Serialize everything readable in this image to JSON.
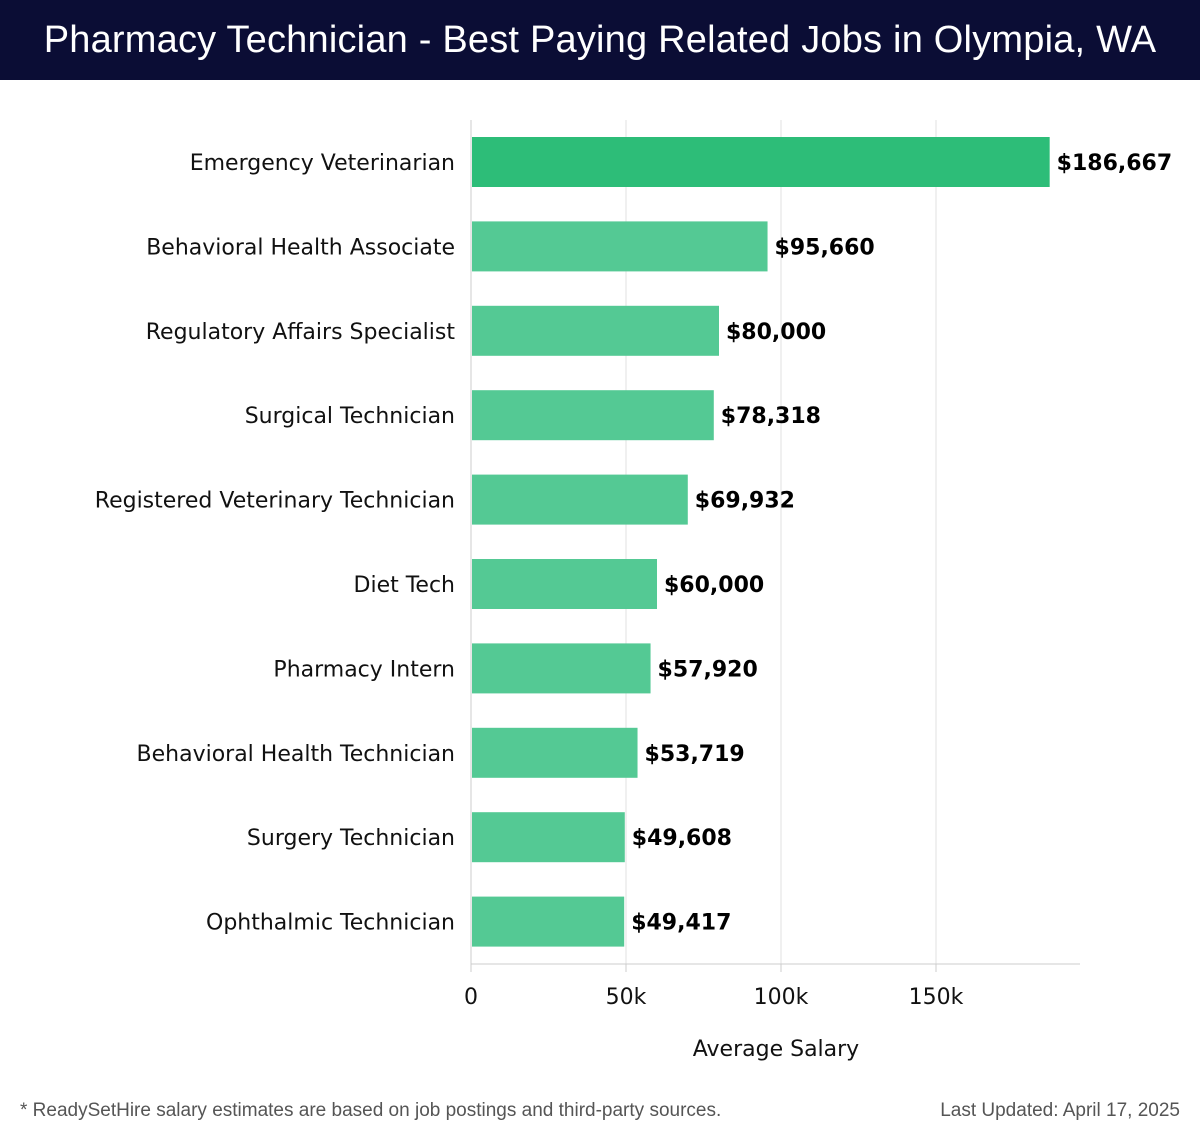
{
  "header": {
    "title": "Pharmacy Technician - Best Paying Related Jobs in Olympia, WA"
  },
  "chart_data": {
    "type": "bar",
    "orientation": "horizontal",
    "title": "Pharmacy Technician - Best Paying Related Jobs in Olympia, WA",
    "xlabel": "Average Salary",
    "ylabel": "",
    "xlim": [
      0,
      196000
    ],
    "xticks": [
      0,
      50000,
      100000,
      150000
    ],
    "xtick_labels": [
      "0",
      "50k",
      "100k",
      "150k"
    ],
    "grid": true,
    "categories": [
      "Emergency Veterinarian",
      "Behavioral Health Associate",
      "Regulatory Affairs Specialist",
      "Surgical Technician",
      "Registered Veterinary Technician",
      "Diet Tech",
      "Pharmacy Intern",
      "Behavioral Health Technician",
      "Surgery Technician",
      "Ophthalmic Technician"
    ],
    "values": [
      186667,
      95660,
      80000,
      78318,
      69932,
      60000,
      57920,
      53719,
      49608,
      49417
    ],
    "value_labels": [
      "$186,667",
      "$95,660",
      "$80,000",
      "$78,318",
      "$69,932",
      "$60,000",
      "$57,920",
      "$53,719",
      "$49,608",
      "$49,417"
    ],
    "colors": {
      "top_bar": "#2dbd78",
      "bar": "#54c994",
      "grid": "#e2e2e2",
      "axis": "#cccccc",
      "text": "#111111"
    }
  },
  "footer": {
    "note": "* ReadySetHire salary estimates are based on job postings and third-party sources.",
    "last_updated": "Last Updated: April 17, 2025"
  }
}
